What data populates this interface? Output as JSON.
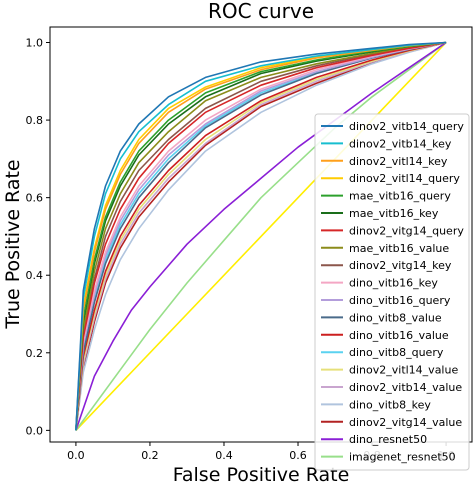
{
  "chart_data": {
    "type": "line",
    "title": "ROC curve",
    "xlabel": "False Positive Rate",
    "ylabel": "True Positive Rate",
    "xlim": [
      -0.07,
      1.07
    ],
    "ylim": [
      -0.03,
      1.04
    ],
    "xticks": [
      "0.0",
      "0.2",
      "0.4",
      "0.6",
      "0.8",
      "1.0"
    ],
    "yticks": [
      "0.0",
      "0.2",
      "0.4",
      "0.6",
      "0.8",
      "1.0"
    ],
    "grid": false,
    "legend_position": "lower-right",
    "series": [
      {
        "name": "dinov2_vitb14_query",
        "color": "#1f77b4",
        "x": [
          0,
          0.02,
          0.05,
          0.08,
          0.12,
          0.17,
          0.25,
          0.35,
          0.5,
          0.65,
          0.8,
          0.9,
          1.0
        ],
        "y": [
          0,
          0.36,
          0.52,
          0.63,
          0.72,
          0.79,
          0.86,
          0.91,
          0.95,
          0.97,
          0.985,
          0.995,
          1.0
        ]
      },
      {
        "name": "dinov2_vitb14_key",
        "color": "#17becf",
        "x": [
          0,
          0.02,
          0.05,
          0.08,
          0.12,
          0.17,
          0.25,
          0.35,
          0.5,
          0.65,
          0.8,
          0.9,
          1.0
        ],
        "y": [
          0,
          0.34,
          0.5,
          0.61,
          0.7,
          0.77,
          0.84,
          0.9,
          0.94,
          0.965,
          0.982,
          0.993,
          1.0
        ]
      },
      {
        "name": "dinov2_vitl14_key",
        "color": "#ff9f1a",
        "x": [
          0,
          0.02,
          0.05,
          0.08,
          0.12,
          0.17,
          0.25,
          0.35,
          0.5,
          0.65,
          0.8,
          0.9,
          1.0
        ],
        "y": [
          0,
          0.31,
          0.46,
          0.57,
          0.66,
          0.74,
          0.82,
          0.88,
          0.93,
          0.96,
          0.98,
          0.992,
          1.0
        ]
      },
      {
        "name": "dinov2_vitl14_query",
        "color": "#ffcc00",
        "x": [
          0,
          0.02,
          0.05,
          0.08,
          0.12,
          0.17,
          0.25,
          0.35,
          0.5,
          0.65,
          0.8,
          0.9,
          1.0
        ],
        "y": [
          0,
          0.32,
          0.47,
          0.58,
          0.67,
          0.75,
          0.83,
          0.885,
          0.935,
          0.962,
          0.981,
          0.992,
          1.0
        ]
      },
      {
        "name": "mae_vitb16_query",
        "color": "#2ca02c",
        "x": [
          0,
          0.02,
          0.05,
          0.08,
          0.12,
          0.17,
          0.25,
          0.35,
          0.5,
          0.65,
          0.8,
          0.9,
          1.0
        ],
        "y": [
          0,
          0.29,
          0.44,
          0.55,
          0.64,
          0.72,
          0.8,
          0.87,
          0.925,
          0.955,
          0.978,
          0.99,
          1.0
        ]
      },
      {
        "name": "mae_vitb16_key",
        "color": "#1a6e1a",
        "x": [
          0,
          0.02,
          0.05,
          0.08,
          0.12,
          0.17,
          0.25,
          0.35,
          0.5,
          0.65,
          0.8,
          0.9,
          1.0
        ],
        "y": [
          0,
          0.28,
          0.43,
          0.54,
          0.63,
          0.71,
          0.79,
          0.86,
          0.92,
          0.952,
          0.976,
          0.99,
          1.0
        ]
      },
      {
        "name": "dinov2_vitg14_query",
        "color": "#d62728",
        "x": [
          0,
          0.02,
          0.05,
          0.08,
          0.12,
          0.17,
          0.25,
          0.35,
          0.5,
          0.65,
          0.8,
          0.9,
          1.0
        ],
        "y": [
          0,
          0.24,
          0.38,
          0.48,
          0.57,
          0.65,
          0.74,
          0.82,
          0.89,
          0.935,
          0.967,
          0.985,
          1.0
        ]
      },
      {
        "name": "mae_vitb16_value",
        "color": "#8c8c1a",
        "x": [
          0,
          0.02,
          0.05,
          0.08,
          0.12,
          0.17,
          0.25,
          0.35,
          0.5,
          0.65,
          0.8,
          0.9,
          1.0
        ],
        "y": [
          0,
          0.26,
          0.41,
          0.52,
          0.61,
          0.69,
          0.77,
          0.85,
          0.91,
          0.945,
          0.972,
          0.988,
          1.0
        ]
      },
      {
        "name": "dinov2_vitg14_key",
        "color": "#8c564b",
        "x": [
          0,
          0.02,
          0.05,
          0.08,
          0.12,
          0.17,
          0.25,
          0.35,
          0.5,
          0.65,
          0.8,
          0.9,
          1.0
        ],
        "y": [
          0,
          0.25,
          0.39,
          0.5,
          0.59,
          0.67,
          0.75,
          0.83,
          0.9,
          0.94,
          0.97,
          0.986,
          1.0
        ]
      },
      {
        "name": "dino_vitb16_key",
        "color": "#f4a6c4",
        "x": [
          0,
          0.02,
          0.05,
          0.08,
          0.12,
          0.17,
          0.25,
          0.35,
          0.5,
          0.65,
          0.8,
          0.9,
          1.0
        ],
        "y": [
          0,
          0.23,
          0.36,
          0.46,
          0.55,
          0.63,
          0.72,
          0.8,
          0.88,
          0.93,
          0.965,
          0.984,
          1.0
        ]
      },
      {
        "name": "dino_vitb16_query",
        "color": "#b39ddb",
        "x": [
          0,
          0.02,
          0.05,
          0.08,
          0.12,
          0.17,
          0.25,
          0.35,
          0.5,
          0.65,
          0.8,
          0.9,
          1.0
        ],
        "y": [
          0,
          0.22,
          0.35,
          0.45,
          0.54,
          0.62,
          0.71,
          0.79,
          0.875,
          0.925,
          0.962,
          0.983,
          1.0
        ]
      },
      {
        "name": "dino_vitb8_value",
        "color": "#4a6b8a",
        "x": [
          0,
          0.02,
          0.05,
          0.08,
          0.12,
          0.17,
          0.25,
          0.35,
          0.5,
          0.65,
          0.8,
          0.9,
          1.0
        ],
        "y": [
          0,
          0.2,
          0.33,
          0.43,
          0.52,
          0.6,
          0.69,
          0.78,
          0.865,
          0.92,
          0.96,
          0.982,
          1.0
        ]
      },
      {
        "name": "dino_vitb16_value",
        "color": "#cc1f1f",
        "x": [
          0,
          0.02,
          0.05,
          0.08,
          0.12,
          0.17,
          0.25,
          0.35,
          0.5,
          0.65,
          0.8,
          0.9,
          1.0
        ],
        "y": [
          0,
          0.19,
          0.31,
          0.41,
          0.5,
          0.58,
          0.67,
          0.76,
          0.85,
          0.91,
          0.955,
          0.98,
          1.0
        ]
      },
      {
        "name": "dino_vitb8_query",
        "color": "#5ad2f0",
        "x": [
          0,
          0.02,
          0.05,
          0.08,
          0.12,
          0.17,
          0.25,
          0.35,
          0.5,
          0.65,
          0.8,
          0.9,
          1.0
        ],
        "y": [
          0,
          0.21,
          0.34,
          0.44,
          0.53,
          0.61,
          0.7,
          0.785,
          0.87,
          0.922,
          0.961,
          0.982,
          1.0
        ]
      },
      {
        "name": "dinov2_vitl14_value",
        "color": "#e6e07a",
        "x": [
          0,
          0.02,
          0.05,
          0.08,
          0.12,
          0.17,
          0.25,
          0.35,
          0.5,
          0.65,
          0.8,
          0.9,
          1.0
        ],
        "y": [
          0,
          0.18,
          0.3,
          0.4,
          0.49,
          0.57,
          0.66,
          0.75,
          0.845,
          0.905,
          0.952,
          0.978,
          1.0
        ]
      },
      {
        "name": "dinov2_vitb14_value",
        "color": "#c9a5cf",
        "x": [
          0,
          0.02,
          0.05,
          0.08,
          0.12,
          0.17,
          0.25,
          0.35,
          0.5,
          0.65,
          0.8,
          0.9,
          1.0
        ],
        "y": [
          0,
          0.17,
          0.29,
          0.39,
          0.48,
          0.56,
          0.65,
          0.74,
          0.84,
          0.9,
          0.95,
          0.977,
          1.0
        ]
      },
      {
        "name": "dino_vitb8_key",
        "color": "#b0c4de",
        "x": [
          0,
          0.02,
          0.05,
          0.08,
          0.12,
          0.17,
          0.25,
          0.35,
          0.5,
          0.65,
          0.8,
          0.9,
          1.0
        ],
        "y": [
          0,
          0.15,
          0.26,
          0.35,
          0.44,
          0.52,
          0.62,
          0.72,
          0.82,
          0.89,
          0.945,
          0.975,
          1.0
        ]
      },
      {
        "name": "dinov2_vitg14_value",
        "color": "#b22222",
        "x": [
          0,
          0.02,
          0.05,
          0.08,
          0.12,
          0.17,
          0.25,
          0.35,
          0.5,
          0.65,
          0.8,
          0.9,
          1.0
        ],
        "y": [
          0,
          0.16,
          0.28,
          0.38,
          0.47,
          0.55,
          0.64,
          0.735,
          0.835,
          0.895,
          0.948,
          0.976,
          1.0
        ]
      },
      {
        "name": "dino_resnet50",
        "color": "#8a1fd6",
        "x": [
          0,
          0.05,
          0.1,
          0.15,
          0.2,
          0.3,
          0.4,
          0.5,
          0.6,
          0.7,
          0.8,
          0.9,
          1.0
        ],
        "y": [
          0,
          0.14,
          0.23,
          0.31,
          0.37,
          0.48,
          0.57,
          0.65,
          0.73,
          0.8,
          0.87,
          0.935,
          1.0
        ]
      },
      {
        "name": "imagenet_resnet50",
        "color": "#98df8a",
        "x": [
          0,
          0.1,
          0.2,
          0.3,
          0.4,
          0.5,
          0.6,
          0.7,
          0.8,
          0.9,
          1.0
        ],
        "y": [
          0,
          0.13,
          0.26,
          0.38,
          0.49,
          0.6,
          0.69,
          0.78,
          0.86,
          0.93,
          1.0
        ]
      },
      {
        "name": "",
        "color": "#ffee00",
        "x": [
          0,
          1
        ],
        "y": [
          0,
          1
        ]
      }
    ]
  }
}
